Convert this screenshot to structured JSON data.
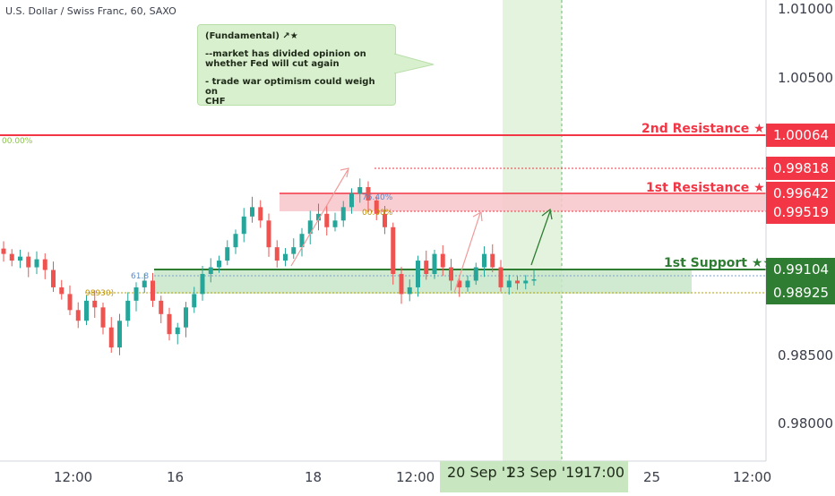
{
  "header": {
    "symbol_title": "U.S. Dollar / Swiss Franc, 60, SAXO"
  },
  "note": {
    "heading": "(Fundamental) ↗★",
    "line1": "--market has divided opinion on\nwhether Fed will cut again",
    "line2": "- trade war optimism could weigh on\nCHF"
  },
  "levels": {
    "second_resistance": {
      "label": "2nd Resistance ★★",
      "price": "1.00064",
      "color": "#f23645"
    },
    "first_resistance_high": {
      "price": "0.99818",
      "color": "#f23645"
    },
    "first_resistance": {
      "label": "1st Resistance ★★",
      "price": "0.99642",
      "color": "#f23645"
    },
    "first_resistance_low": {
      "price": "0.99519",
      "color": "#f23645"
    },
    "first_support": {
      "label": "1st Support ★★",
      "price": "0.99104",
      "color": "#2e7d32"
    },
    "first_support_low": {
      "price": "0.98925",
      "color": "#2e7d32"
    }
  },
  "fib_labels": {
    "zero_top": "00.00%",
    "f618": "61.8",
    "f7640": "76.40%",
    "zero_mid": "00.00%",
    "f_low": "98930)"
  },
  "price_axis": {
    "ticks": [
      "1.01000",
      "1.00500",
      "0.98500",
      "0.98000"
    ]
  },
  "time_axis": {
    "ticks": [
      "12:00",
      "16",
      "18",
      "12:00",
      "25",
      "12:00"
    ],
    "highlight_left": "20 Sep '1",
    "highlight_right": "23 Sep '19",
    "highlight_time": "17:00"
  },
  "colors": {
    "bull": "#26a69a",
    "bear": "#ef5350",
    "resistance": "#f23645",
    "support": "#4caf50"
  },
  "chart_data": {
    "type": "candlestick",
    "title": "U.S. Dollar / Swiss Franc, 60, SAXO",
    "ylim": [
      0.9775,
      1.012
    ],
    "x_ticks": [
      "12:00",
      "16",
      "18",
      "12:00",
      "20 Sep '1",
      "23 Sep '19",
      "17:00",
      "25",
      "12:00"
    ],
    "close_path": [
      0.993,
      0.9925,
      0.9928,
      0.992,
      0.9926,
      0.9918,
      0.9905,
      0.99,
      0.9888,
      0.988,
      0.9895,
      0.989,
      0.9875,
      0.986,
      0.988,
      0.9895,
      0.9905,
      0.991,
      0.9895,
      0.9885,
      0.987,
      0.9875,
      0.989,
      0.99,
      0.9915,
      0.992,
      0.9925,
      0.9935,
      0.9945,
      0.9958,
      0.9965,
      0.9955,
      0.9935,
      0.9925,
      0.993,
      0.9935,
      0.9945,
      0.9955,
      0.996,
      0.995,
      0.9955,
      0.9965,
      0.9975,
      0.998,
      0.997,
      0.996,
      0.995,
      0.9915,
      0.99,
      0.9905,
      0.9925,
      0.9915,
      0.993,
      0.992,
      0.991,
      0.9905,
      0.991,
      0.992,
      0.993,
      0.992,
      0.9905,
      0.991,
      0.9908,
      0.991,
      0.9911
    ]
  }
}
